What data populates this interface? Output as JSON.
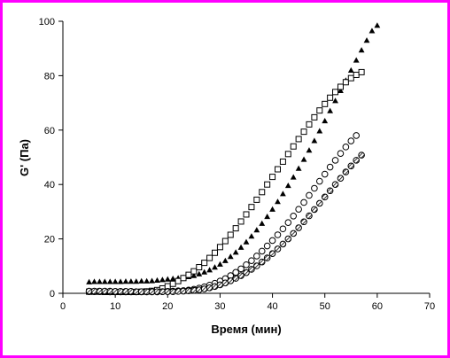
{
  "colors": {
    "frame": "#ff00ff",
    "ink": "#000000",
    "background": "#ffffff"
  },
  "chart_data": {
    "type": "scatter",
    "title": "",
    "xlabel": "Время (мин)",
    "ylabel": "G' (Па)",
    "xlim": [
      0,
      70
    ],
    "ylim": [
      0,
      100
    ],
    "xticks": [
      0,
      10,
      20,
      30,
      40,
      50,
      60,
      70
    ],
    "yticks": [
      0,
      20,
      40,
      60,
      80,
      100
    ],
    "grid": false,
    "legend": "none",
    "series": [
      {
        "marker": "filled-triangle",
        "x": [
          5,
          6,
          7,
          8,
          9,
          10,
          11,
          12,
          13,
          14,
          15,
          16,
          17,
          18,
          19,
          20,
          21,
          22,
          23,
          24,
          25,
          26,
          27,
          28,
          29,
          30,
          31,
          32,
          33,
          34,
          35,
          36,
          37,
          38,
          39,
          40,
          41,
          42,
          43,
          44,
          45,
          46,
          47,
          48,
          49,
          50,
          51,
          52,
          53,
          54,
          55,
          56,
          57,
          58,
          59,
          60,
          61,
          62,
          63,
          64,
          65
        ],
        "y": [
          4.2,
          4.3,
          4.3,
          4.3,
          4.3,
          4.3,
          4.3,
          4.4,
          4.4,
          4.4,
          4.5,
          4.5,
          4.6,
          4.8,
          5.0,
          5.2,
          5.4,
          5.6,
          5.8,
          6.1,
          6.5,
          7.1,
          7.8,
          8.6,
          9.6,
          10.7,
          12.0,
          13.5,
          15.1,
          16.9,
          18.9,
          21.0,
          23.3,
          25.7,
          28.2,
          30.9,
          33.7,
          36.6,
          39.6,
          42.7,
          45.9,
          49.2,
          52.6,
          56.1,
          59.7,
          63.4,
          67.1,
          70.8,
          74.5,
          78.3,
          82.0,
          85.7,
          89.4,
          93.0,
          96.5,
          98.5,
          null,
          null,
          null,
          null,
          null
        ]
      },
      {
        "marker": "open-square",
        "x": [
          5,
          6,
          7,
          8,
          9,
          10,
          11,
          12,
          13,
          14,
          15,
          16,
          17,
          18,
          19,
          20,
          21,
          22,
          23,
          24,
          25,
          26,
          27,
          28,
          29,
          30,
          31,
          32,
          33,
          34,
          35,
          36,
          37,
          38,
          39,
          40,
          41,
          42,
          43,
          44,
          45,
          46,
          47,
          48,
          49,
          50,
          51,
          52,
          53,
          54,
          55,
          56,
          57,
          58,
          59,
          60,
          61,
          62,
          63,
          64,
          65
        ],
        "y": [
          0.6,
          0.6,
          0.6,
          0.5,
          0.5,
          0.5,
          0.5,
          0.5,
          0.5,
          0.5,
          0.6,
          0.7,
          0.9,
          1.2,
          1.8,
          2.6,
          3.5,
          4.5,
          5.6,
          6.8,
          8.1,
          9.6,
          11.2,
          13.0,
          14.9,
          17.0,
          19.2,
          21.5,
          23.9,
          26.4,
          29.0,
          31.7,
          34.4,
          37.2,
          40.0,
          42.8,
          45.6,
          48.4,
          51.2,
          54.0,
          56.7,
          59.4,
          62.1,
          64.7,
          67.2,
          69.6,
          71.9,
          74.0,
          75.9,
          77.6,
          79.1,
          80.3,
          81.3,
          null,
          null,
          null,
          null,
          null,
          null,
          null,
          null
        ]
      },
      {
        "marker": "open-circle",
        "x": [
          5,
          6,
          7,
          8,
          9,
          10,
          11,
          12,
          13,
          14,
          15,
          16,
          17,
          18,
          19,
          20,
          21,
          22,
          23,
          24,
          25,
          26,
          27,
          28,
          29,
          30,
          31,
          32,
          33,
          34,
          35,
          36,
          37,
          38,
          39,
          40,
          41,
          42,
          43,
          44,
          45,
          46,
          47,
          48,
          49,
          50,
          51,
          52,
          53,
          54,
          55,
          56,
          57,
          58,
          59,
          60,
          61,
          62,
          63,
          64,
          65
        ],
        "y": [
          0.6,
          0.6,
          0.6,
          0.6,
          0.5,
          0.5,
          0.5,
          0.5,
          0.5,
          0.5,
          0.5,
          0.5,
          0.5,
          0.5,
          0.6,
          0.7,
          0.8,
          0.9,
          1.0,
          1.2,
          1.5,
          1.9,
          2.4,
          3.0,
          3.7,
          4.5,
          5.4,
          6.5,
          7.7,
          9.0,
          10.5,
          12.0,
          13.7,
          15.5,
          17.4,
          19.4,
          21.5,
          23.7,
          26.0,
          28.4,
          30.9,
          33.4,
          36.0,
          38.6,
          41.2,
          43.8,
          46.4,
          48.9,
          51.4,
          53.8,
          56.0,
          58.0,
          null,
          null,
          null,
          null,
          null,
          null,
          null,
          null,
          null
        ]
      },
      {
        "marker": "hatched-circle",
        "x": [
          5,
          6,
          7,
          8,
          9,
          10,
          11,
          12,
          13,
          14,
          15,
          16,
          17,
          18,
          19,
          20,
          21,
          22,
          23,
          24,
          25,
          26,
          27,
          28,
          29,
          30,
          31,
          32,
          33,
          34,
          35,
          36,
          37,
          38,
          39,
          40,
          41,
          42,
          43,
          44,
          45,
          46,
          47,
          48,
          49,
          50,
          51,
          52,
          53,
          54,
          55,
          56,
          57,
          58,
          59,
          60,
          61,
          62,
          63,
          64,
          65
        ],
        "y": [
          0.8,
          0.8,
          0.8,
          0.8,
          0.8,
          0.7,
          0.7,
          0.7,
          0.7,
          0.6,
          0.6,
          0.6,
          0.6,
          0.6,
          0.6,
          0.6,
          0.6,
          0.7,
          0.8,
          0.9,
          1.1,
          1.3,
          1.6,
          2.0,
          2.5,
          3.1,
          3.8,
          4.6,
          5.5,
          6.5,
          7.6,
          8.8,
          10.1,
          11.5,
          13.0,
          14.6,
          16.3,
          18.1,
          20.0,
          22.0,
          24.1,
          26.3,
          28.5,
          30.8,
          33.1,
          35.4,
          37.7,
          40.0,
          42.3,
          44.6,
          46.8,
          48.9,
          50.8,
          null,
          null,
          null,
          null,
          null,
          null,
          null,
          null
        ]
      }
    ]
  }
}
